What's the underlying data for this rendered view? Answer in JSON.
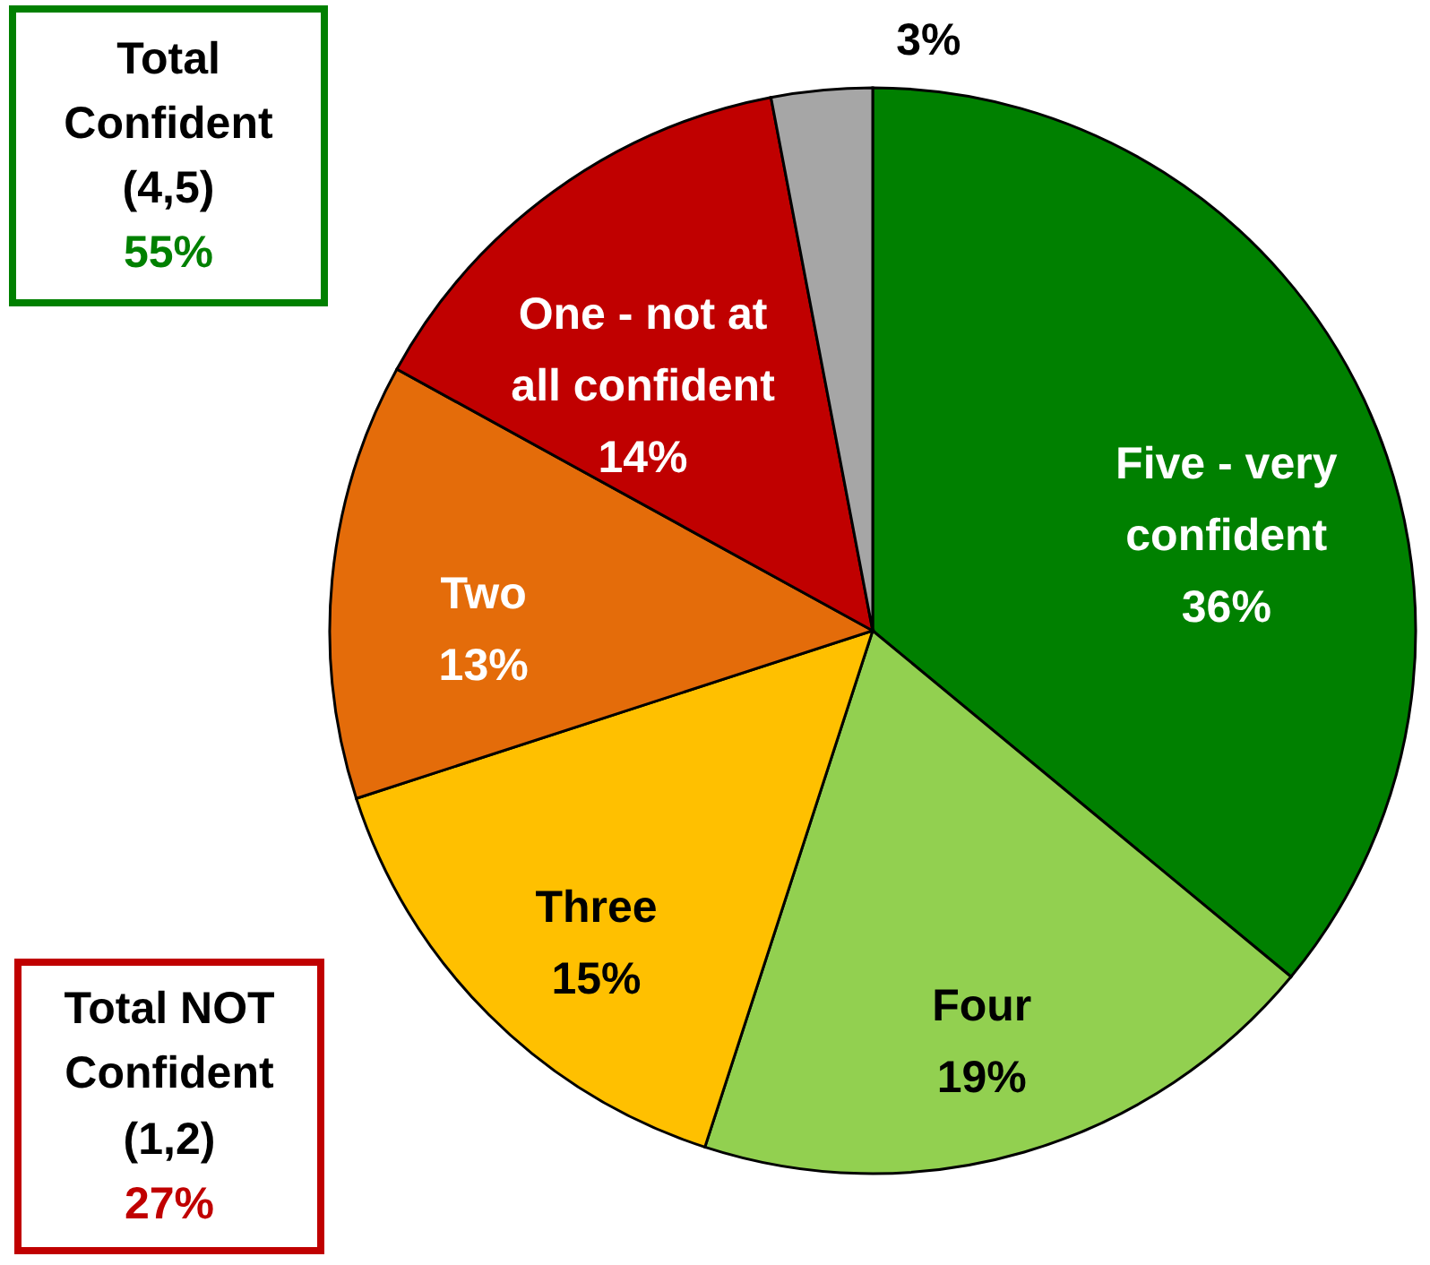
{
  "chart_data": {
    "type": "pie",
    "categories": [
      "Five - very confident",
      "Four",
      "Three",
      "Two",
      "One - not at all confident",
      null
    ],
    "values": [
      36,
      19,
      15,
      13,
      14,
      3
    ],
    "colors": [
      "#008000",
      "#92d050",
      "#ffc000",
      "#e46c0a",
      "#c00000",
      "#a6a6a6"
    ],
    "value_labels": [
      "36%",
      "19%",
      "15%",
      "13%",
      "14%",
      "3%"
    ],
    "annotations": [
      "Total Confident (4,5)",
      "55%",
      "Total NOT Confident (1,2)",
      "27%"
    ]
  }
}
